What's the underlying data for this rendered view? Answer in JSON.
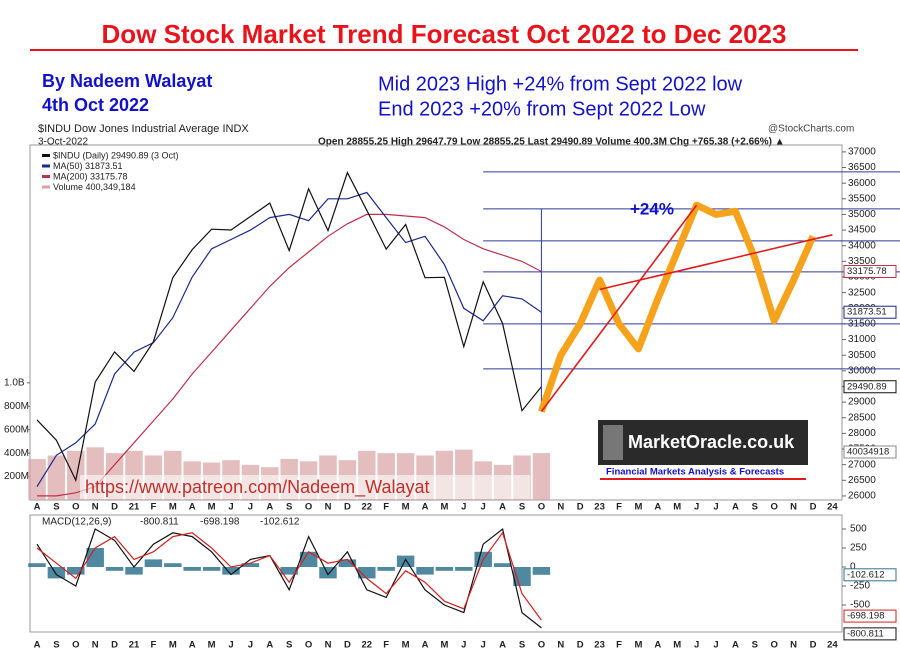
{
  "chart_data": [
    {
      "type": "line",
      "title": "Dow Stock Market Trend Forecast Oct 2022 to Dec 2023",
      "author": "By Nadeem Walayat",
      "date": "4th Oct 2022",
      "notes": [
        "Mid 2023 High +24% from Sept 2022 low",
        "End 2023 +20% from Sept 2022 Low"
      ],
      "forecast_label": "+24%",
      "url": "https://www.patreon.com/Nadeem_Walayat",
      "logo": {
        "name": "MarketOracle.co.uk",
        "tagline": "Financial Markets Analysis & Forecasts"
      },
      "symbol_header": "$INDU Dow Jones Industrial Average INDX",
      "source": "@StockCharts.com",
      "header_date": "3-Oct-2022",
      "quote": "Open 28855.25   High 29647.79   Low 28855.25   Last 29490.89   Volume 400.3M   Chg +765.38 (+2.66%) ▲",
      "volume_tag": "40034918",
      "categories": [
        "A",
        "S",
        "O",
        "N",
        "D",
        "21",
        "F",
        "M",
        "A",
        "M",
        "J",
        "J",
        "A",
        "S",
        "O",
        "N",
        "D",
        "22",
        "F",
        "M",
        "A",
        "M",
        "J",
        "J",
        "A",
        "S",
        "O",
        "N",
        "D",
        "23",
        "F",
        "M",
        "A",
        "M",
        "J",
        "J",
        "A",
        "S",
        "O",
        "N",
        "D",
        "24"
      ],
      "ylim": [
        25870,
        37220
      ],
      "yticks": [
        26000,
        26500,
        27000,
        27500,
        28000,
        28500,
        29000,
        29500,
        30000,
        30500,
        31000,
        31500,
        32000,
        32500,
        33000,
        33500,
        34000,
        34500,
        35000,
        35500,
        36000,
        36500,
        37000
      ],
      "y2lim": [
        0,
        3030000000
      ],
      "y2ticks": [
        {
          "value": 200000000,
          "label": "200M"
        },
        {
          "value": 400000000,
          "label": "400M"
        },
        {
          "value": 600000000,
          "label": "600M"
        },
        {
          "value": 800000000,
          "label": "800M"
        },
        {
          "value": 1000000000,
          "label": "1.0B"
        }
      ],
      "grid": false,
      "series": [
        {
          "name": "$INDU (Daily) 29490.89 (3 Oct)",
          "color": "#111111",
          "values": [
            28430,
            27782,
            26501,
            29638,
            30606,
            29983,
            30932,
            32982,
            33875,
            34529,
            34503,
            34935,
            35361,
            33844,
            35820,
            34484,
            36338,
            35132,
            33893,
            34678,
            32977,
            32990,
            30775,
            32845,
            31510,
            28725,
            29490.89,
            null,
            null,
            null,
            null,
            null,
            null,
            null,
            null,
            null,
            null,
            null,
            null,
            null,
            null,
            null
          ]
        },
        {
          "name": "MA(50) 31873.51",
          "color": "#1a2a8a",
          "values": [
            26300,
            27300,
            27700,
            28300,
            29900,
            30600,
            30900,
            31700,
            33000,
            33900,
            34200,
            34500,
            34900,
            35000,
            34800,
            35500,
            35500,
            35700,
            34900,
            34100,
            34300,
            33400,
            32000,
            31600,
            32400,
            32300,
            31873.51,
            null,
            null,
            null,
            null,
            null,
            null,
            null,
            null,
            null,
            null,
            null,
            null,
            null,
            null,
            null
          ]
        },
        {
          "name": "MA(200) 33175.78",
          "color": "#c0304a",
          "values": [
            26000,
            26000,
            26100,
            26300,
            27000,
            27700,
            28400,
            29100,
            29900,
            30600,
            31300,
            32000,
            32700,
            33300,
            33800,
            34300,
            34700,
            35000,
            35000,
            34950,
            34900,
            34600,
            34200,
            33900,
            33700,
            33500,
            33175.78,
            null,
            null,
            null,
            null,
            null,
            null,
            null,
            null,
            null,
            null,
            null,
            null,
            null,
            null,
            null
          ]
        },
        {
          "name": "Volume 400,349,184",
          "color": "#d9a3a3",
          "axis": "y2",
          "values": [
            350000000,
            380000000,
            420000000,
            450000000,
            400000000,
            420000000,
            380000000,
            420000000,
            330000000,
            320000000,
            340000000,
            300000000,
            280000000,
            350000000,
            330000000,
            380000000,
            340000000,
            420000000,
            400000000,
            400000000,
            380000000,
            420000000,
            430000000,
            330000000,
            300000000,
            380000000,
            400349184,
            null,
            null,
            null,
            null,
            null,
            null,
            null,
            null,
            null,
            null,
            null,
            null,
            null,
            null,
            null
          ]
        }
      ],
      "levels": {
        "color": "#2a3aa0",
        "values": [
          36361,
          35178,
          34155,
          33163,
          31500,
          30061
        ]
      },
      "overlays": [
        {
          "color": "#f7a21b",
          "width": 7,
          "values": [
            null,
            null,
            null,
            null,
            null,
            null,
            null,
            null,
            null,
            null,
            null,
            null,
            null,
            null,
            null,
            null,
            null,
            null,
            null,
            null,
            null,
            null,
            null,
            null,
            null,
            null,
            28700,
            30500,
            31500,
            32900,
            31500,
            30700,
            32300,
            33800,
            35300,
            35000,
            35100,
            33600,
            31600,
            32900,
            34300,
            null
          ]
        },
        {
          "color": "#e01b1b",
          "width": 1.6,
          "values": [
            null,
            null,
            null,
            null,
            null,
            null,
            null,
            null,
            null,
            null,
            null,
            null,
            null,
            null,
            null,
            null,
            null,
            null,
            null,
            null,
            null,
            null,
            null,
            null,
            null,
            null,
            28700,
            29525,
            30350,
            31175,
            32000,
            32825,
            33650,
            34475,
            35300,
            null,
            null,
            null,
            null,
            null,
            null,
            null
          ]
        },
        {
          "color": "#e01b1b",
          "width": 1.6,
          "values": [
            null,
            null,
            null,
            null,
            null,
            null,
            null,
            null,
            null,
            null,
            null,
            null,
            null,
            null,
            null,
            null,
            null,
            null,
            null,
            null,
            null,
            null,
            null,
            null,
            null,
            null,
            null,
            null,
            null,
            32600,
            32746,
            32892,
            33038,
            33183,
            33329,
            33475,
            33621,
            33767,
            33913,
            34058,
            34204,
            34350
          ]
        }
      ]
    },
    {
      "type": "line",
      "title": "MACD(12,26,9)",
      "categories": [
        "A",
        "S",
        "O",
        "N",
        "D",
        "21",
        "F",
        "M",
        "A",
        "M",
        "J",
        "J",
        "A",
        "S",
        "O",
        "N",
        "D",
        "22",
        "F",
        "M",
        "A",
        "M",
        "J",
        "J",
        "A",
        "S",
        "O",
        "N",
        "D",
        "23",
        "F",
        "M",
        "A",
        "M",
        "J",
        "J",
        "A",
        "S",
        "O",
        "N",
        "D",
        "24"
      ],
      "ylim": [
        -855,
        684
      ],
      "yticks": [
        500,
        250,
        0,
        -250,
        -500
      ],
      "series": [
        {
          "name": "MACD",
          "color": "#111111",
          "values": [
            300,
            -100,
            -250,
            500,
            350,
            0,
            300,
            450,
            400,
            200,
            -100,
            100,
            150,
            -300,
            400,
            -100,
            200,
            -300,
            -400,
            100,
            -300,
            -500,
            -600,
            300,
            500,
            -600,
            -800.811,
            null,
            null,
            null,
            null,
            null,
            null,
            null,
            null,
            null,
            null,
            null,
            null,
            null,
            null,
            null
          ]
        },
        {
          "name": "Signal",
          "color": "#d42020",
          "values": [
            250,
            50,
            -150,
            250,
            400,
            100,
            200,
            400,
            450,
            250,
            0,
            50,
            150,
            -200,
            200,
            50,
            100,
            -150,
            -350,
            -50,
            -200,
            -450,
            -550,
            100,
            450,
            -350,
            -698.198,
            null,
            null,
            null,
            null,
            null,
            null,
            null,
            null,
            null,
            null,
            null,
            null,
            null,
            null,
            null
          ]
        },
        {
          "name": "Histogram",
          "color": "#2f7390",
          "values": [
            50,
            -150,
            -100,
            250,
            -50,
            -100,
            100,
            50,
            -50,
            -50,
            -100,
            50,
            0,
            -100,
            200,
            -150,
            100,
            -150,
            -50,
            150,
            -100,
            -50,
            -50,
            200,
            50,
            -250,
            -102.612,
            null,
            null,
            null,
            null,
            null,
            null,
            null,
            null,
            null,
            null,
            null,
            null,
            null,
            null,
            null
          ]
        }
      ]
    }
  ]
}
